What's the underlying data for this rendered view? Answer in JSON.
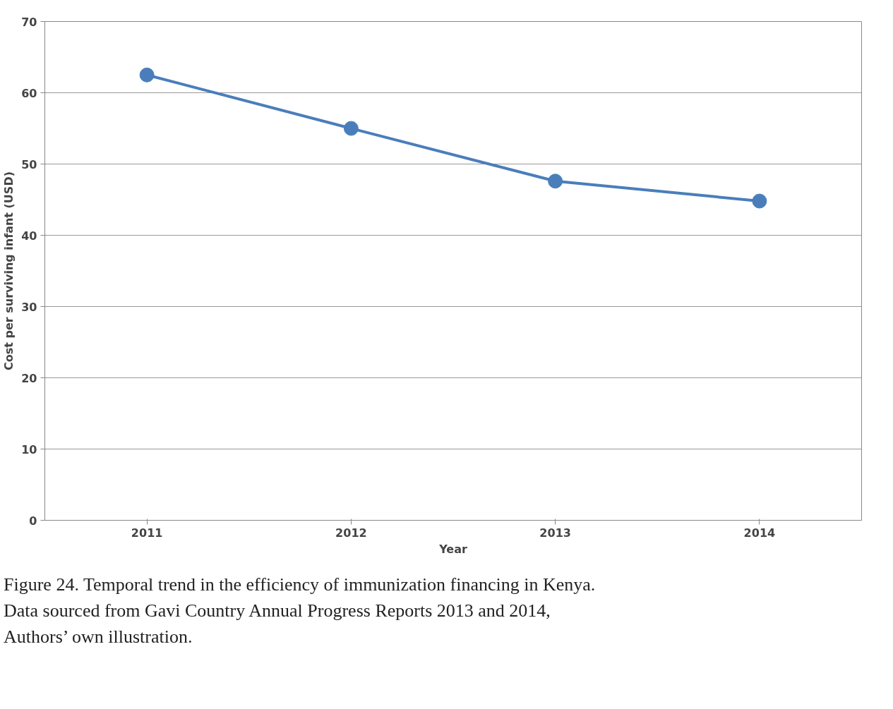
{
  "chart_data": {
    "type": "line",
    "title": "Figure 24. Temporal trend in the efficiency of immunization financing in Kenya.",
    "xlabel": "Year",
    "ylabel": "Cost per surviving infant (USD)",
    "categories": [
      "2011",
      "2012",
      "2013",
      "2014"
    ],
    "series": [
      {
        "color": "#4a7ebb",
        "values": [
          62.5,
          55.0,
          47.6,
          44.8
        ]
      }
    ],
    "ylim": [
      0,
      70
    ],
    "yticks": [
      0,
      10,
      20,
      30,
      40,
      50,
      60,
      70
    ],
    "grid": "y",
    "marker": "circle",
    "line_style": "solid",
    "annotations": [
      "Data sourced from Gavi Country Annual Progress Reports 2013 and 2014,",
      "Authors’ own illustration."
    ]
  }
}
